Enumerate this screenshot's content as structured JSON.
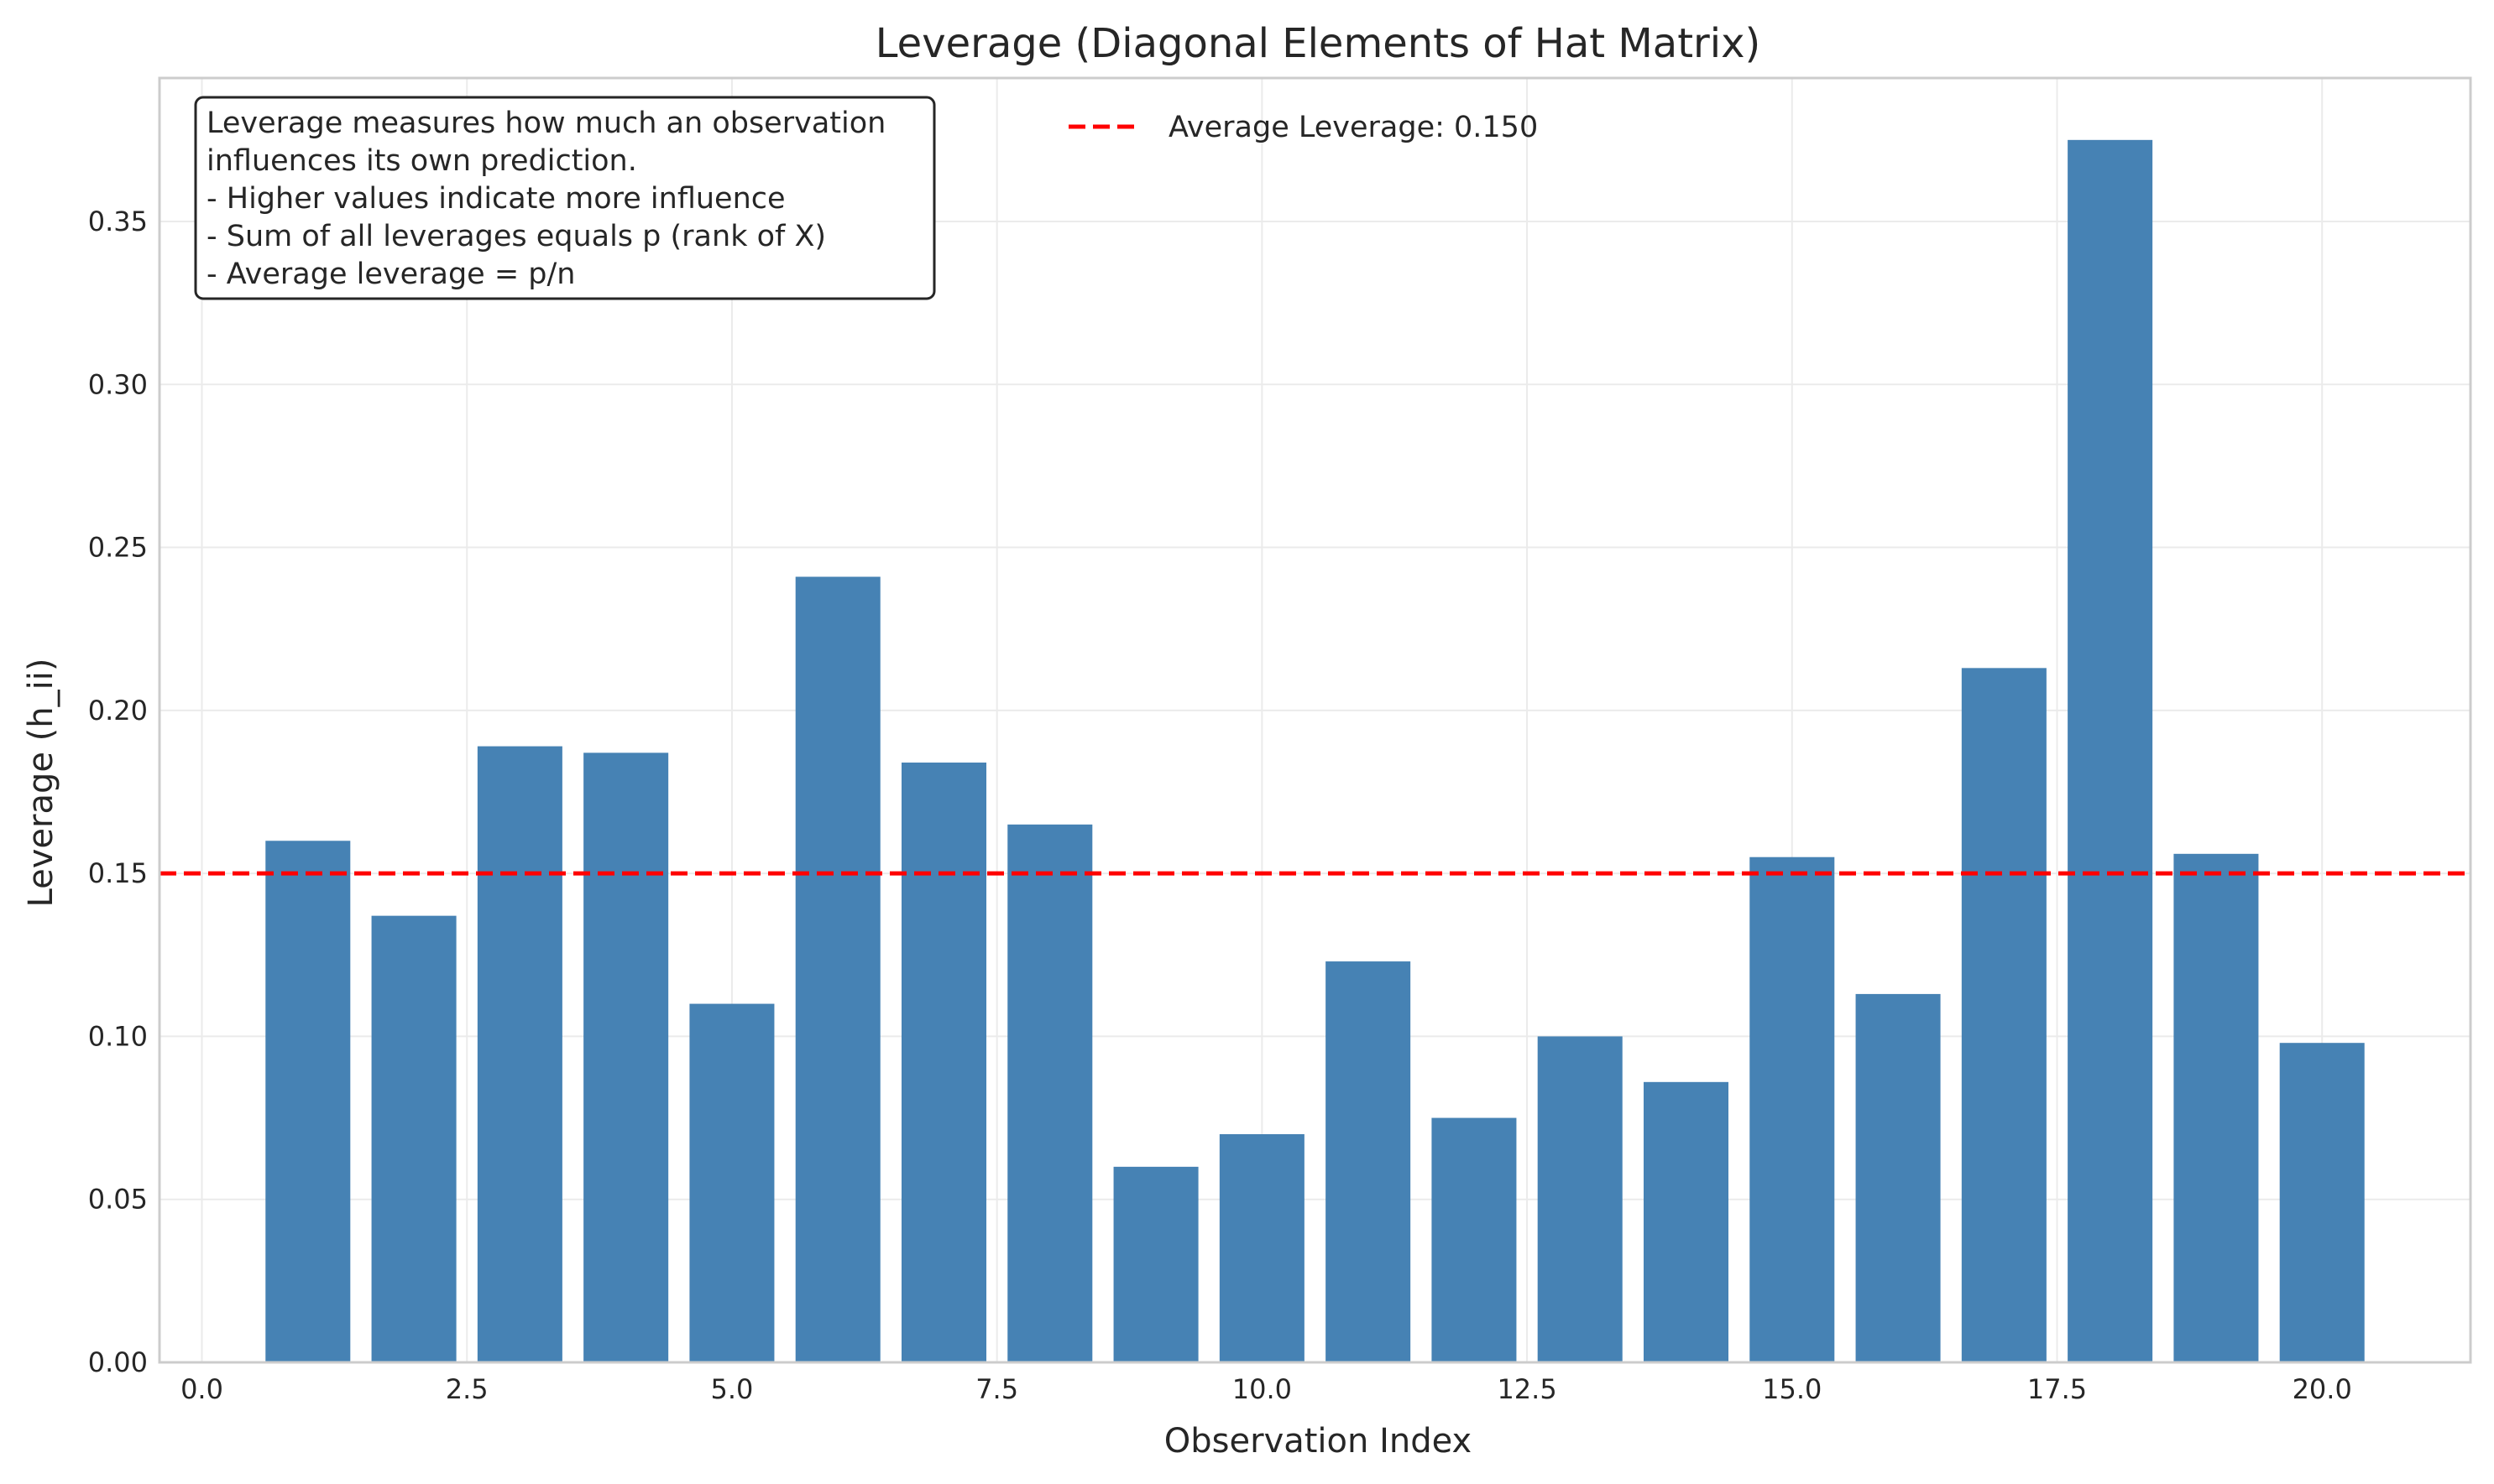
{
  "chart_data": {
    "type": "bar",
    "title": "Leverage (Diagonal Elements of Hat Matrix)",
    "xlabel": "Observation Index",
    "ylabel": "Leverage (h_ii)",
    "x": [
      1,
      2,
      3,
      4,
      5,
      6,
      7,
      8,
      9,
      10,
      11,
      12,
      13,
      14,
      15,
      16,
      17,
      18,
      19,
      20
    ],
    "values": [
      0.16,
      0.137,
      0.189,
      0.187,
      0.11,
      0.241,
      0.184,
      0.165,
      0.06,
      0.07,
      0.123,
      0.075,
      0.1,
      0.086,
      0.155,
      0.113,
      0.213,
      0.375,
      0.156,
      0.098
    ],
    "xlim": [
      -0.4,
      21.4
    ],
    "ylim": [
      0,
      0.394
    ],
    "xticks": [
      0.0,
      2.5,
      5.0,
      7.5,
      10.0,
      12.5,
      15.0,
      17.5,
      20.0
    ],
    "xtick_labels": [
      "0.0",
      "2.5",
      "5.0",
      "7.5",
      "10.0",
      "12.5",
      "15.0",
      "17.5",
      "20.0"
    ],
    "yticks": [
      0.0,
      0.05,
      0.1,
      0.15,
      0.2,
      0.25,
      0.3,
      0.35
    ],
    "ytick_labels": [
      "0.00",
      "0.05",
      "0.10",
      "0.15",
      "0.20",
      "0.25",
      "0.30",
      "0.35"
    ],
    "bar_color": "#4682b4",
    "reference_line": {
      "value": 0.15,
      "color": "#ff0000",
      "style": "dashed",
      "label": "Average Leverage: 0.150"
    },
    "legend": {
      "placement": "top-center"
    },
    "grid": true,
    "annotation": {
      "placement": "top-left",
      "lines": [
        "Leverage measures how much an observation",
        "influences its own prediction.",
        "- Higher values indicate more influence",
        "- Sum of all leverages equals p (rank of X)",
        "- Average leverage = p/n"
      ]
    }
  }
}
